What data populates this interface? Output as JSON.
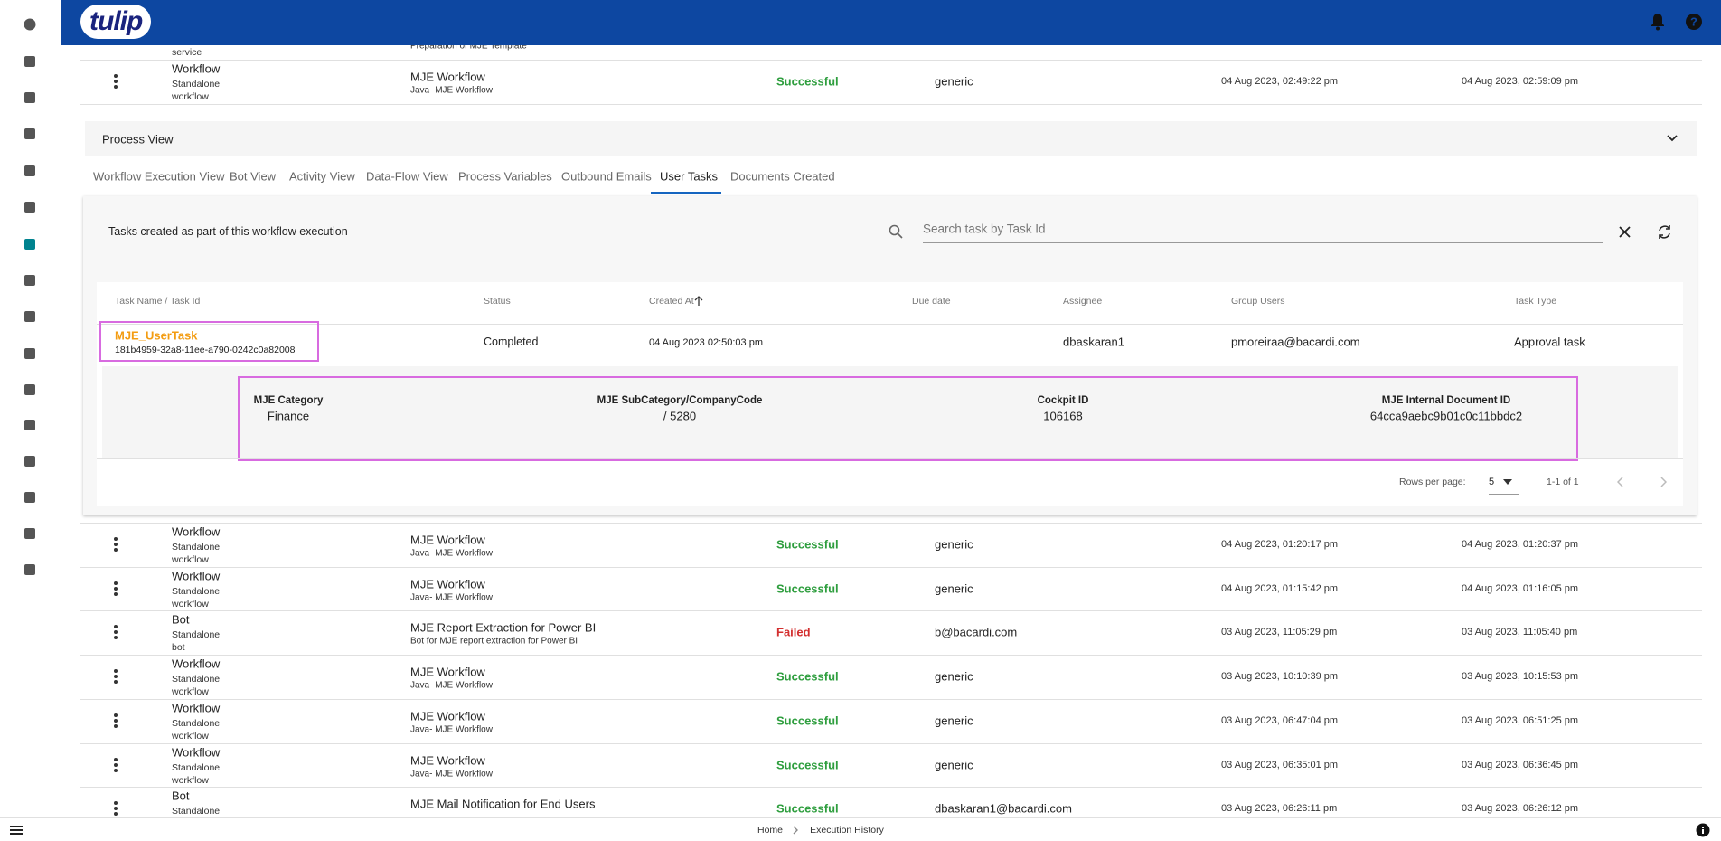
{
  "header": {
    "logo": "tulip"
  },
  "clipped_row": {
    "sub2": "service",
    "description": "Preparation of MJE Template"
  },
  "rows_top": [
    {
      "kind": "Workflow",
      "sub1": "Standalone",
      "sub2": "workflow",
      "name": "MJE Workflow",
      "description": "Java- MJE Workflow",
      "status": "Successful",
      "status_color": "#2e9e3e",
      "user": "generic",
      "started": "04 Aug 2023, 02:49:22 pm",
      "ended": "04 Aug 2023, 02:59:09 pm"
    }
  ],
  "process_view": {
    "title": "Process View",
    "tabs": [
      "Workflow Execution View",
      "Bot View",
      "Activity View",
      "Data-Flow View",
      "Process Variables",
      "Outbound Emails",
      "User Tasks",
      "Documents Created"
    ],
    "active_tab": 6,
    "panel_title": "Tasks created as part of this workflow execution",
    "search_placeholder": "Search task by Task Id",
    "columns": [
      "Task Name / Task Id",
      "Status",
      "Created At",
      "Due date",
      "Assignee",
      "Group Users",
      "Task Type"
    ],
    "task": {
      "name": "MJE_UserTask",
      "id": "181b4959-32a8-11ee-a790-0242c0a82008",
      "status": "Completed",
      "created": "04 Aug 2023 02:50:03 pm",
      "assignee": "dbaskaran1",
      "group": "pmoreiraa@bacardi.com",
      "type": "Approval task"
    },
    "details": [
      {
        "label": "MJE Category",
        "value": "Finance"
      },
      {
        "label": "MJE SubCategory/CompanyCode",
        "value": "/ 5280"
      },
      {
        "label": "Cockpit ID",
        "value": "106168"
      },
      {
        "label": "MJE Internal Document ID",
        "value": "64cca9aebc9b01c0c11bbdc2"
      }
    ],
    "pagination": {
      "rows_per_page_label": "Rows per page:",
      "rows_per_page": 5,
      "range": "1-1 of 1"
    }
  },
  "rows_bottom": [
    {
      "kind": "Workflow",
      "sub1": "Standalone",
      "sub2": "workflow",
      "name": "MJE Workflow",
      "description": "Java- MJE Workflow",
      "status": "Successful",
      "status_color": "#2e9e3e",
      "user": "generic",
      "started": "04 Aug 2023, 01:20:17 pm",
      "ended": "04 Aug 2023, 01:20:37 pm"
    },
    {
      "kind": "Workflow",
      "sub1": "Standalone",
      "sub2": "workflow",
      "name": "MJE Workflow",
      "description": "Java- MJE Workflow",
      "status": "Successful",
      "status_color": "#2e9e3e",
      "user": "generic",
      "started": "04 Aug 2023, 01:15:42 pm",
      "ended": "04 Aug 2023, 01:16:05 pm"
    },
    {
      "kind": "Bot",
      "sub1": "Standalone",
      "sub2": "bot",
      "name": "MJE Report Extraction for Power BI",
      "description": "Bot for MJE report extraction for Power BI",
      "status": "Failed",
      "status_color": "#d32f2f",
      "user": "b@bacardi.com",
      "started": "03 Aug 2023, 11:05:29 pm",
      "ended": "03 Aug 2023, 11:05:40 pm"
    },
    {
      "kind": "Workflow",
      "sub1": "Standalone",
      "sub2": "workflow",
      "name": "MJE Workflow",
      "description": "Java- MJE Workflow",
      "status": "Successful",
      "status_color": "#2e9e3e",
      "user": "generic",
      "started": "03 Aug 2023, 10:10:39 pm",
      "ended": "03 Aug 2023, 10:15:53 pm"
    },
    {
      "kind": "Workflow",
      "sub1": "Standalone",
      "sub2": "workflow",
      "name": "MJE Workflow",
      "description": "Java- MJE Workflow",
      "status": "Successful",
      "status_color": "#2e9e3e",
      "user": "generic",
      "started": "03 Aug 2023, 06:47:04 pm",
      "ended": "03 Aug 2023, 06:51:25 pm"
    },
    {
      "kind": "Workflow",
      "sub1": "Standalone",
      "sub2": "workflow",
      "name": "MJE Workflow",
      "description": "Java- MJE Workflow",
      "status": "Successful",
      "status_color": "#2e9e3e",
      "user": "generic",
      "started": "03 Aug 2023, 06:35:01 pm",
      "ended": "03 Aug 2023, 06:36:45 pm"
    },
    {
      "kind": "Bot",
      "sub1": "Standalone",
      "name": "MJE Mail Notification for End Users",
      "status": "Successful",
      "status_color": "#2e9e3e",
      "user": "dbaskaran1@bacardi.com",
      "started": "03 Aug 2023, 06:26:11 pm",
      "ended": "03 Aug 2023, 06:26:12 pm"
    }
  ],
  "footer": {
    "breadcrumbs": [
      "Home",
      "Execution History"
    ]
  }
}
